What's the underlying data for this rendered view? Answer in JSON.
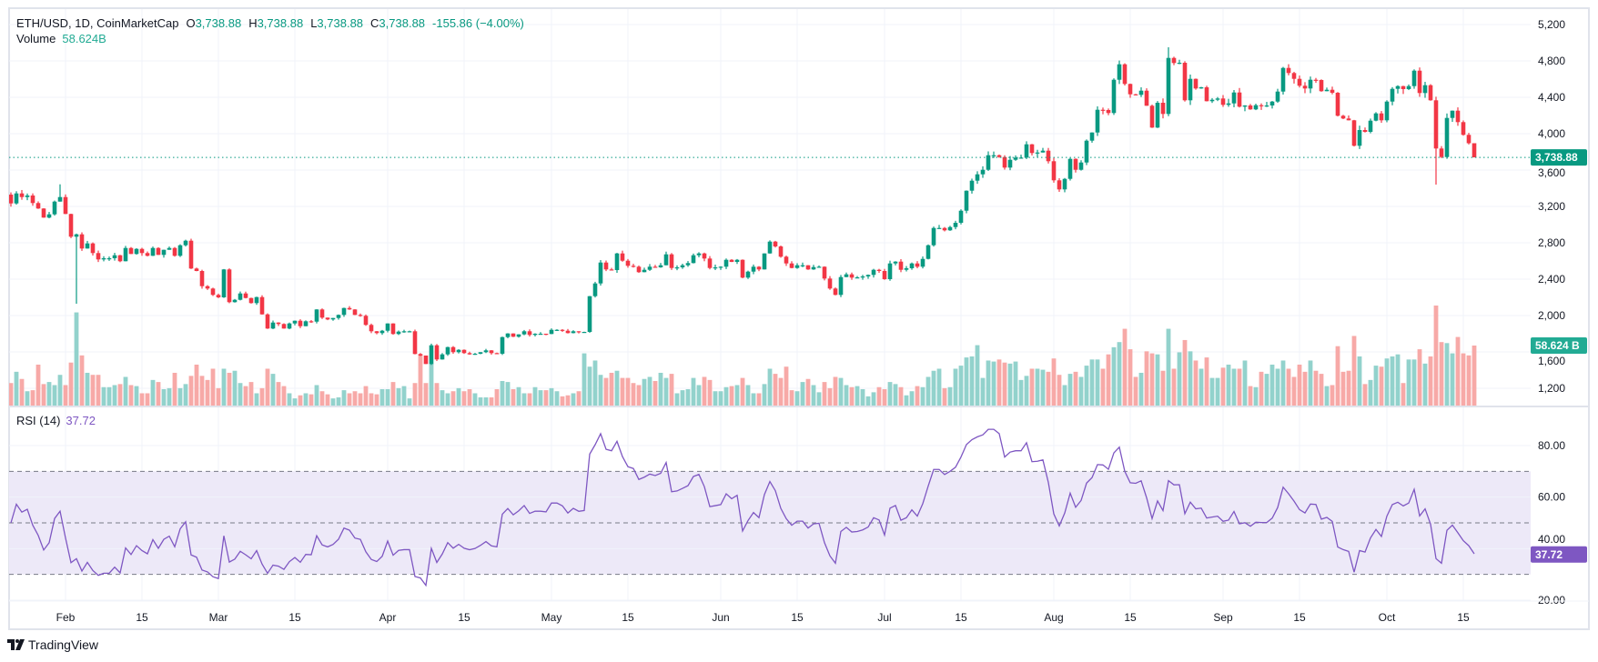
{
  "legend": {
    "symbol": "ETH/USD, 1D, CoinMarketCap",
    "o_label": "O",
    "o_value": "3,738.88",
    "h_label": "H",
    "h_value": "3,738.88",
    "l_label": "L",
    "l_value": "3,738.88",
    "c_label": "C",
    "c_value": "3,738.88",
    "change": "-155.86 (−4.00%)",
    "volume_label": "Volume",
    "volume_value": "58.624B"
  },
  "rsi_legend": {
    "label": "RSI (14)",
    "value": "37.72"
  },
  "branding": {
    "name": "TradingView"
  },
  "colors": {
    "up": "#089981",
    "down": "#f23645",
    "vol_up": "#92d2cc",
    "vol_down": "#f7a9a7",
    "rsi": "#7e57c2",
    "grid": "#f0f3fa",
    "band": "#ede9f8"
  },
  "chart_data": [
    {
      "type": "candlestick",
      "title": "ETH/USD, 1D, CoinMarketCap",
      "x_unit": "day index (0 = first visible daily bar)",
      "ylim": [
        1100,
        5300
      ],
      "grid": true,
      "price_ticks": [
        {
          "value": 5200,
          "label": "5,200"
        },
        {
          "value": 4800,
          "label": "4,800"
        },
        {
          "value": 4400,
          "label": "4,400"
        },
        {
          "value": 4000,
          "label": "4,000"
        },
        {
          "value": 3600,
          "label": "3,600"
        },
        {
          "value": 3200,
          "label": "3,200"
        },
        {
          "value": 2800,
          "label": "2,800"
        },
        {
          "value": 2400,
          "label": "2,400"
        },
        {
          "value": 2000,
          "label": "2,000"
        },
        {
          "value": 1600,
          "label": "1,600"
        },
        {
          "value": 1200,
          "label": "1,200"
        }
      ],
      "time_ticks": [
        {
          "day": 10,
          "label": "Feb",
          "major": true
        },
        {
          "day": 24,
          "label": "15"
        },
        {
          "day": 38,
          "label": "Mar",
          "major": true
        },
        {
          "day": 52,
          "label": "15"
        },
        {
          "day": 69,
          "label": "Apr",
          "major": true
        },
        {
          "day": 83,
          "label": "15"
        },
        {
          "day": 99,
          "label": "May",
          "major": true
        },
        {
          "day": 113,
          "label": "15"
        },
        {
          "day": 130,
          "label": "Jun",
          "major": true
        },
        {
          "day": 144,
          "label": "15"
        },
        {
          "day": 160,
          "label": "Jul",
          "major": true
        },
        {
          "day": 174,
          "label": "15"
        },
        {
          "day": 191,
          "label": "Aug",
          "major": true
        },
        {
          "day": 205,
          "label": "15"
        },
        {
          "day": 222,
          "label": "Sep",
          "major": true
        },
        {
          "day": 236,
          "label": "15"
        },
        {
          "day": 252,
          "label": "Oct",
          "major": true
        },
        {
          "day": 266,
          "label": "15"
        }
      ],
      "first_open": 3330,
      "close": [
        3233,
        3343,
        3303,
        3320,
        3237,
        3177,
        3077,
        3113,
        3253,
        3303,
        3117,
        2867,
        2893,
        2737,
        2793,
        2687,
        2617,
        2630,
        2630,
        2663,
        2597,
        2743,
        2677,
        2733,
        2687,
        2657,
        2743,
        2667,
        2723,
        2743,
        2657,
        2773,
        2823,
        2517,
        2490,
        2323,
        2297,
        2227,
        2200,
        2507,
        2147,
        2173,
        2243,
        2193,
        2137,
        2203,
        2013,
        1857,
        1923,
        1907,
        1857,
        1913,
        1943,
        1883,
        1937,
        1933,
        2067,
        1977,
        1957,
        1973,
        2007,
        2083,
        2067,
        2007,
        1997,
        1897,
        1827,
        1807,
        1833,
        1913,
        1797,
        1823,
        1827,
        1827,
        1577,
        1560,
        1467,
        1673,
        1517,
        1573,
        1653,
        1597,
        1623,
        1587,
        1573,
        1580,
        1597,
        1617,
        1587,
        1580,
        1763,
        1803,
        1767,
        1793,
        1827,
        1787,
        1800,
        1800,
        1797,
        1843,
        1843,
        1833,
        1807,
        1827,
        1817,
        1820,
        2213,
        2353,
        2583,
        2507,
        2500,
        2683,
        2603,
        2547,
        2537,
        2477,
        2503,
        2537,
        2530,
        2553,
        2673,
        2523,
        2530,
        2553,
        2577,
        2663,
        2683,
        2627,
        2523,
        2530,
        2537,
        2613,
        2590,
        2613,
        2417,
        2483,
        2537,
        2507,
        2683,
        2813,
        2760,
        2647,
        2573,
        2523,
        2553,
        2553,
        2507,
        2533,
        2537,
        2407,
        2297,
        2227,
        2423,
        2453,
        2417,
        2420,
        2430,
        2447,
        2503,
        2490,
        2400,
        2573,
        2593,
        2503,
        2520,
        2573,
        2537,
        2623,
        2773,
        2963,
        2963,
        2937,
        2973,
        3020,
        3153,
        3373,
        3483,
        3553,
        3603,
        3763,
        3763,
        3743,
        3627,
        3713,
        3737,
        3737,
        3883,
        3787,
        3793,
        3813,
        3697,
        3487,
        3387,
        3503,
        3723,
        3603,
        3683,
        3923,
        4013,
        4263,
        4260,
        4227,
        4593,
        4763,
        4547,
        4433,
        4427,
        4473,
        4307,
        4067,
        4340,
        4217,
        4833,
        4777,
        4780,
        4367,
        4603,
        4497,
        4510,
        4357,
        4373,
        4387,
        4317,
        4333,
        4453,
        4297,
        4310,
        4267,
        4313,
        4310,
        4310,
        4353,
        4463,
        4723,
        4667,
        4603,
        4527,
        4497,
        4593,
        4590,
        4467,
        4483,
        4450,
        4197,
        4167,
        4147,
        3867,
        4040,
        4020,
        4143,
        4223,
        4147,
        4353,
        4493,
        4523,
        4490,
        4523,
        4693,
        4447,
        4533,
        4367,
        3837,
        3743,
        4173,
        4253,
        4127,
        3987,
        3895,
        3738.88
      ],
      "notable_wicks": [
        {
          "day": 9,
          "high": 3443
        },
        {
          "day": 12,
          "low": 2130
        },
        {
          "day": 261,
          "low": 3440
        },
        {
          "day": 212,
          "high": 4950
        }
      ],
      "last_price": {
        "value": 3738.88,
        "label": "3,738.88"
      }
    },
    {
      "type": "bar",
      "name": "Volume",
      "unit": "B",
      "values": [
        22,
        33,
        26,
        14,
        15,
        40,
        21,
        23,
        20,
        30,
        20,
        42,
        91,
        49,
        32,
        30,
        30,
        18,
        18,
        20,
        21,
        28,
        20,
        19,
        12,
        12,
        25,
        23,
        16,
        17,
        32,
        17,
        21,
        29,
        40,
        29,
        25,
        36,
        17,
        36,
        32,
        34,
        22,
        19,
        23,
        12,
        17,
        36,
        31,
        23,
        19,
        12,
        7,
        10,
        12,
        11,
        20,
        14,
        11,
        7,
        8,
        15,
        12,
        14,
        12,
        19,
        12,
        11,
        16,
        16,
        23,
        17,
        19,
        7,
        22,
        49,
        22,
        41,
        22,
        15,
        12,
        14,
        17,
        14,
        16,
        12,
        8,
        8,
        8,
        16,
        24,
        23,
        16,
        18,
        12,
        12,
        18,
        15,
        15,
        17,
        14,
        9,
        10,
        12,
        14,
        51,
        38,
        44,
        30,
        27,
        32,
        34,
        27,
        27,
        22,
        20,
        26,
        28,
        24,
        32,
        27,
        31,
        12,
        15,
        16,
        27,
        20,
        28,
        25,
        14,
        14,
        18,
        19,
        20,
        27,
        20,
        12,
        12,
        21,
        36,
        31,
        27,
        38,
        15,
        14,
        23,
        26,
        20,
        13,
        23,
        17,
        28,
        27,
        20,
        18,
        19,
        16,
        9,
        13,
        18,
        16,
        23,
        21,
        18,
        10,
        14,
        19,
        18,
        28,
        34,
        36,
        17,
        18,
        36,
        39,
        47,
        48,
        59,
        27,
        44,
        43,
        45,
        42,
        41,
        43,
        25,
        29,
        36,
        36,
        35,
        33,
        46,
        30,
        20,
        31,
        33,
        28,
        39,
        45,
        45,
        36,
        50,
        57,
        62,
        75,
        55,
        28,
        32,
        53,
        51,
        50,
        34,
        75,
        36,
        52,
        64,
        53,
        44,
        36,
        47,
        27,
        27,
        37,
        40,
        36,
        36,
        44,
        19,
        18,
        33,
        31,
        40,
        36,
        44,
        36,
        28,
        40,
        33,
        44,
        34,
        31,
        19,
        20,
        58,
        33,
        34,
        68,
        48,
        21,
        25,
        39,
        38,
        46,
        48,
        50,
        22,
        45,
        45,
        55,
        41,
        48,
        97.7,
        62,
        61,
        51,
        67,
        51,
        49,
        58.624
      ],
      "last_label": "58.624 B"
    },
    {
      "type": "line",
      "name": "RSI (14)",
      "ylim": [
        15,
        95
      ],
      "levels": [
        70,
        50,
        30
      ],
      "ticks": [
        {
          "value": 80,
          "label": "80.00"
        },
        {
          "value": 60,
          "label": "60.00"
        },
        {
          "value": 40,
          "label": "40.00"
        },
        {
          "value": 20,
          "label": "20.00"
        }
      ],
      "period": 14,
      "last_value": 37.72,
      "last_label": "37.72"
    }
  ]
}
